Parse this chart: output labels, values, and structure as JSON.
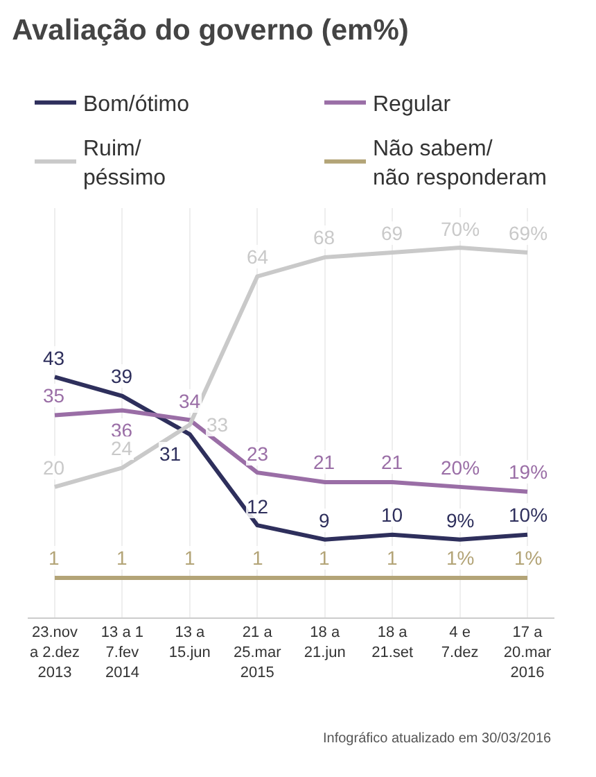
{
  "chart_data": {
    "type": "line",
    "title": "Avaliação do governo (em%)",
    "categories": [
      "23.nov\na 2.dez\n2013",
      "13 a 1\n7.fev\n2014",
      "13 a\n15.jun",
      "21 a\n25.mar\n2015",
      "18 a\n21.jun",
      "18 a\n21.set",
      "4 e\n7.dez",
      "17 a\n20.mar\n2016"
    ],
    "series": [
      {
        "name": "Bom/ótimo",
        "color": "#2e2f5c",
        "values": [
          43,
          39,
          31,
          12,
          9,
          10,
          9,
          10
        ],
        "value_labels": [
          "43",
          "39",
          "31",
          "12",
          "9",
          "10",
          "9%",
          "10%"
        ]
      },
      {
        "name": "Regular",
        "color": "#9a6ea6",
        "values": [
          35,
          36,
          34,
          23,
          21,
          21,
          20,
          19
        ],
        "value_labels": [
          "35",
          "36",
          "34",
          "23",
          "21",
          "21",
          "20%",
          "19%"
        ]
      },
      {
        "name": "Ruim/\npéssimo",
        "color": "#c9c9c9",
        "values": [
          20,
          24,
          33,
          64,
          68,
          69,
          70,
          69
        ],
        "value_labels": [
          "20",
          "24",
          "33",
          "64",
          "68",
          "69",
          "70%",
          "69%"
        ]
      },
      {
        "name": "Não sabem/\nnão responderam",
        "color": "#b3a477",
        "values": [
          1,
          1,
          1,
          1,
          1,
          1,
          1,
          1
        ],
        "value_labels": [
          "1",
          "1",
          "1",
          "1",
          "1",
          "1",
          "1%",
          "1%"
        ]
      }
    ],
    "legend": "top",
    "grid": "x",
    "marker": "none",
    "line_style": "solid",
    "annotations": [
      "Infográfico atualizado em 30/03/2016"
    ]
  }
}
